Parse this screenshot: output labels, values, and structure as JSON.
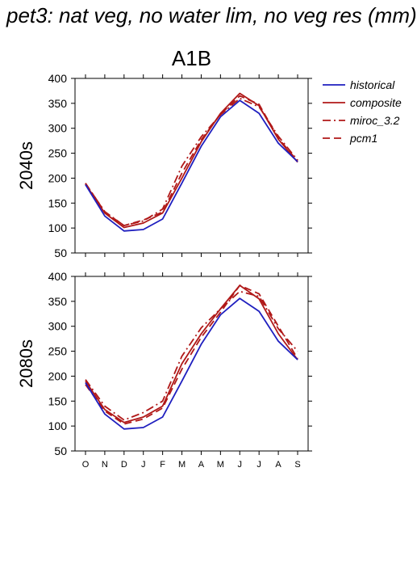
{
  "page": {
    "title": "pet3: nat veg, no water lim, no veg res (mm)"
  },
  "colors": {
    "historical": "#1f1fbf",
    "future": "#b01818"
  },
  "legend": [
    {
      "name": "historical",
      "color": "#1f1fbf",
      "style": "solid"
    },
    {
      "name": "composite",
      "color": "#b01818",
      "style": "solid"
    },
    {
      "name": "miroc_3.2",
      "color": "#b01818",
      "style": "dashdot"
    },
    {
      "name": "pcm1",
      "color": "#b01818",
      "style": "dashed"
    }
  ],
  "chart_data": [
    {
      "type": "line",
      "title": "A1B",
      "ylabel": "2040s",
      "xlabel": "",
      "categories": [
        "O",
        "N",
        "D",
        "J",
        "F",
        "M",
        "A",
        "M",
        "J",
        "J",
        "A",
        "S"
      ],
      "ylim": [
        50,
        400
      ],
      "yticks": [
        50,
        100,
        150,
        200,
        250,
        300,
        350,
        400
      ],
      "legend_position": "right",
      "grid": false,
      "show_x_tick_labels": false,
      "series": [
        {
          "name": "historical",
          "values": [
            187,
            124,
            94,
            97,
            118,
            190,
            264,
            323,
            356,
            330,
            270,
            233
          ]
        },
        {
          "name": "composite",
          "values": [
            188,
            130,
            101,
            110,
            130,
            200,
            273,
            330,
            370,
            345,
            278,
            232
          ]
        },
        {
          "name": "miroc_3.2",
          "values": [
            189,
            133,
            105,
            114,
            138,
            224,
            283,
            327,
            360,
            343,
            284,
            236
          ]
        },
        {
          "name": "pcm1",
          "values": [
            190,
            132,
            105,
            116,
            132,
            210,
            277,
            328,
            365,
            348,
            280,
            234
          ]
        }
      ]
    },
    {
      "type": "line",
      "title": "",
      "ylabel": "2080s",
      "xlabel": "",
      "categories": [
        "O",
        "N",
        "D",
        "J",
        "F",
        "M",
        "A",
        "M",
        "J",
        "J",
        "A",
        "S"
      ],
      "ylim": [
        50,
        400
      ],
      "yticks": [
        50,
        100,
        150,
        200,
        250,
        300,
        350,
        400
      ],
      "grid": false,
      "show_x_tick_labels": true,
      "series": [
        {
          "name": "historical",
          "values": [
            187,
            124,
            94,
            97,
            118,
            190,
            264,
            323,
            356,
            330,
            270,
            233
          ]
        },
        {
          "name": "composite",
          "values": [
            190,
            133,
            107,
            118,
            140,
            225,
            285,
            335,
            382,
            355,
            285,
            233
          ]
        },
        {
          "name": "miroc_3.2",
          "values": [
            193,
            140,
            112,
            127,
            150,
            240,
            297,
            335,
            370,
            360,
            295,
            250
          ]
        },
        {
          "name": "pcm1",
          "values": [
            183,
            130,
            104,
            114,
            136,
            214,
            278,
            328,
            382,
            365,
            300,
            235
          ]
        }
      ]
    }
  ]
}
